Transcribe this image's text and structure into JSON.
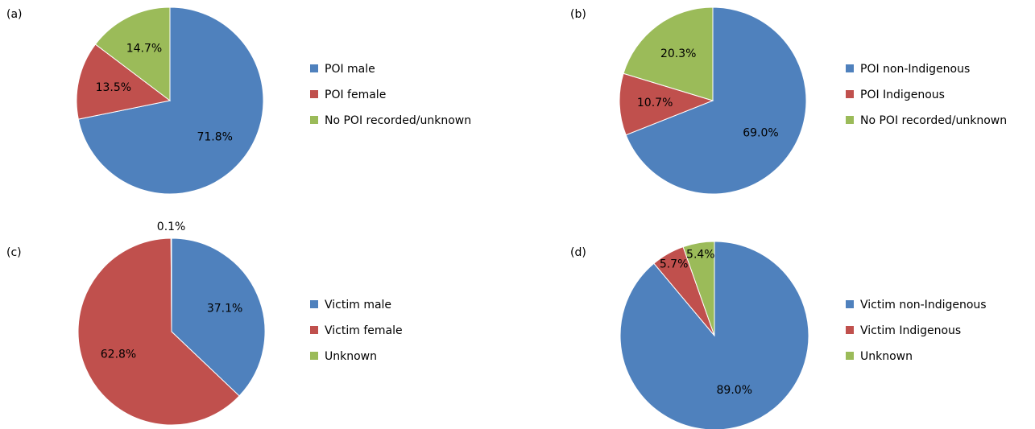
{
  "chart_data": [
    {
      "type": "pie",
      "panel": "(a)",
      "categories": [
        "POI male",
        "POI female",
        "No POI recorded/unknown"
      ],
      "values": [
        71.8,
        13.5,
        14.7
      ],
      "value_labels": [
        "71.8%",
        "13.5%",
        "14.7%"
      ],
      "colors": [
        "#4f81bd",
        "#c0504d",
        "#9bbb59"
      ]
    },
    {
      "type": "pie",
      "panel": "(b)",
      "categories": [
        "POI non-Indigenous",
        "POI Indigenous",
        "No POI recorded/unknown"
      ],
      "values": [
        69.0,
        10.7,
        20.3
      ],
      "value_labels": [
        "69.0%",
        "10.7%",
        "20.3%"
      ],
      "colors": [
        "#4f81bd",
        "#c0504d",
        "#9bbb59"
      ]
    },
    {
      "type": "pie",
      "panel": "(c)",
      "categories": [
        "Victim male",
        "Victim female",
        "Unknown"
      ],
      "values": [
        37.1,
        62.8,
        0.1
      ],
      "value_labels": [
        "37.1%",
        "62.8%",
        "0.1%"
      ],
      "colors": [
        "#4f81bd",
        "#c0504d",
        "#9bbb59"
      ]
    },
    {
      "type": "pie",
      "panel": "(d)",
      "categories": [
        "Victim non-Indigenous",
        "Victim Indigenous",
        "Unknown"
      ],
      "values": [
        89.0,
        5.7,
        5.4
      ],
      "value_labels": [
        "89.0%",
        "5.7%",
        "5.4%"
      ],
      "colors": [
        "#4f81bd",
        "#c0504d",
        "#9bbb59"
      ]
    }
  ]
}
